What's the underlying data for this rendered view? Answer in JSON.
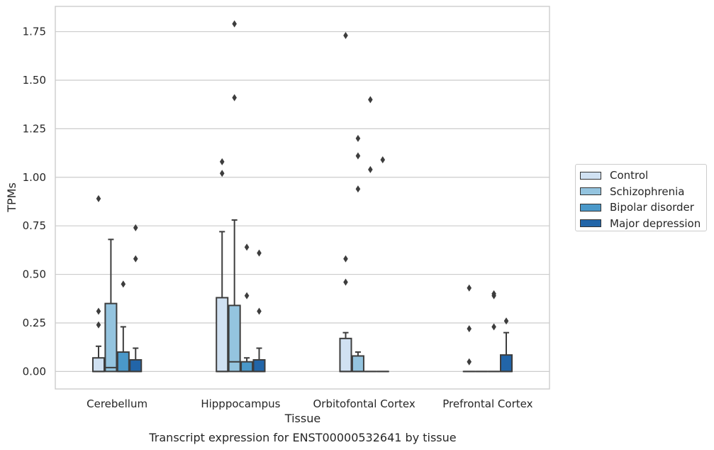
{
  "chart_data": {
    "type": "box",
    "title": "Transcript expression for ENST00000532641 by tissue",
    "xlabel": "Tissue",
    "ylabel": "TPMs",
    "ylim": [
      -0.09,
      1.88
    ],
    "yticks": [
      0.0,
      0.25,
      0.5,
      0.75,
      1.0,
      1.25,
      1.5,
      1.75
    ],
    "ytick_labels": [
      "0.00",
      "0.25",
      "0.50",
      "0.75",
      "1.00",
      "1.25",
      "1.50",
      "1.75"
    ],
    "grid": "horizontal",
    "legend_position": "right",
    "categories": [
      "Cerebellum",
      "Hipppocampus",
      "Orbitofontal Cortex",
      "Prefrontal Cortex"
    ],
    "series": [
      {
        "name": "Control",
        "color": "#d0e1f2",
        "boxes": [
          {
            "q1": 0.0,
            "median": 0.0,
            "q3": 0.07,
            "whisker_low": 0.0,
            "whisker_high": 0.13,
            "outliers": [
              0.24,
              0.31,
              0.89
            ]
          },
          {
            "q1": 0.0,
            "median": 0.0,
            "q3": 0.38,
            "whisker_low": 0.0,
            "whisker_high": 0.72,
            "outliers": [
              1.02,
              1.08
            ]
          },
          {
            "q1": 0.0,
            "median": 0.0,
            "q3": 0.17,
            "whisker_low": 0.0,
            "whisker_high": 0.2,
            "outliers": [
              0.46,
              0.58,
              1.73
            ]
          },
          {
            "q1": 0.0,
            "median": 0.0,
            "q3": 0.0,
            "whisker_low": 0.0,
            "whisker_high": 0.0,
            "outliers": [
              0.05,
              0.22,
              0.43
            ]
          }
        ]
      },
      {
        "name": "Schizophrenia",
        "color": "#94c4df",
        "boxes": [
          {
            "q1": 0.0,
            "median": 0.02,
            "q3": 0.35,
            "whisker_low": 0.0,
            "whisker_high": 0.68,
            "outliers": []
          },
          {
            "q1": 0.0,
            "median": 0.05,
            "q3": 0.34,
            "whisker_low": 0.0,
            "whisker_high": 0.78,
            "outliers": [
              1.41,
              1.79
            ]
          },
          {
            "q1": 0.0,
            "median": 0.0,
            "q3": 0.08,
            "whisker_low": 0.0,
            "whisker_high": 0.1,
            "outliers": [
              0.94,
              1.11,
              1.2
            ]
          },
          {
            "q1": 0.0,
            "median": 0.0,
            "q3": 0.0,
            "whisker_low": 0.0,
            "whisker_high": 0.0,
            "outliers": []
          }
        ]
      },
      {
        "name": "Bipolar disorder",
        "color": "#4a98c9",
        "boxes": [
          {
            "q1": 0.0,
            "median": 0.0,
            "q3": 0.1,
            "whisker_low": 0.0,
            "whisker_high": 0.23,
            "outliers": [
              0.45
            ]
          },
          {
            "q1": 0.0,
            "median": 0.0,
            "q3": 0.05,
            "whisker_low": 0.0,
            "whisker_high": 0.07,
            "outliers": [
              0.39,
              0.64
            ]
          },
          {
            "q1": 0.0,
            "median": 0.0,
            "q3": 0.0,
            "whisker_low": 0.0,
            "whisker_high": 0.0,
            "outliers": [
              1.04,
              1.4
            ]
          },
          {
            "q1": 0.0,
            "median": 0.0,
            "q3": 0.0,
            "whisker_low": 0.0,
            "whisker_high": 0.0,
            "outliers": [
              0.23,
              0.39,
              0.4
            ]
          }
        ]
      },
      {
        "name": "Major depression",
        "color": "#2265a8",
        "boxes": [
          {
            "q1": 0.0,
            "median": 0.0,
            "q3": 0.06,
            "whisker_low": 0.0,
            "whisker_high": 0.12,
            "outliers": [
              0.58,
              0.74
            ]
          },
          {
            "q1": 0.0,
            "median": 0.0,
            "q3": 0.06,
            "whisker_low": 0.0,
            "whisker_high": 0.12,
            "outliers": [
              0.31,
              0.61
            ]
          },
          {
            "q1": 0.0,
            "median": 0.0,
            "q3": 0.0,
            "whisker_low": 0.0,
            "whisker_high": 0.0,
            "outliers": [
              1.09
            ]
          },
          {
            "q1": 0.0,
            "median": 0.0,
            "q3": 0.085,
            "whisker_low": 0.0,
            "whisker_high": 0.2,
            "outliers": [
              0.26
            ]
          }
        ]
      }
    ]
  }
}
